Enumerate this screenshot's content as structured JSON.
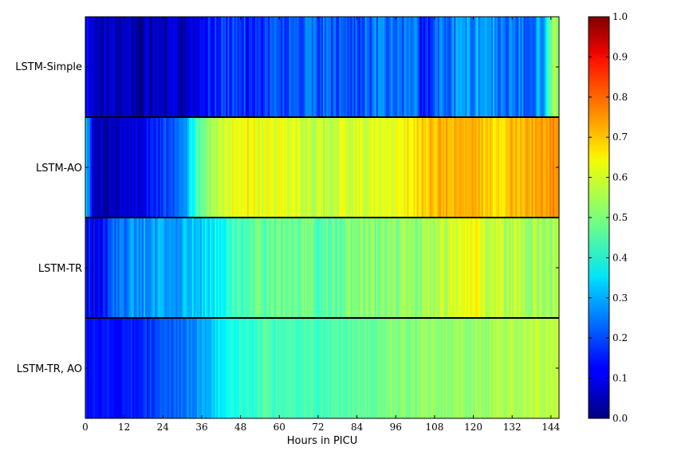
{
  "chart_data": {
    "type": "heatmap",
    "title": "",
    "xlabel": "Hours in PICU",
    "ylabel": "",
    "xlim": [
      0,
      146.5
    ],
    "x_ticks": [
      "0",
      "12",
      "24",
      "36",
      "48",
      "60",
      "72",
      "84",
      "96",
      "108",
      "120",
      "132",
      "144"
    ],
    "colorbar": {
      "colormap": "jet",
      "range": [
        0.0,
        1.0
      ],
      "ticks": [
        "0.0",
        "0.1",
        "0.2",
        "0.3",
        "0.4",
        "0.5",
        "0.6",
        "0.7",
        "0.8",
        "0.9",
        "1.0"
      ]
    },
    "grid": false,
    "rows": [
      {
        "label": "LSTM-Simple",
        "anchors": [
          [
            0,
            0.1
          ],
          [
            4,
            0.07
          ],
          [
            10,
            0.06
          ],
          [
            16,
            0.05
          ],
          [
            24,
            0.05
          ],
          [
            30,
            0.07
          ],
          [
            34,
            0.1
          ],
          [
            38,
            0.15
          ],
          [
            44,
            0.18
          ],
          [
            52,
            0.17
          ],
          [
            60,
            0.2
          ],
          [
            70,
            0.22
          ],
          [
            80,
            0.2
          ],
          [
            90,
            0.23
          ],
          [
            98,
            0.22
          ],
          [
            102,
            0.28
          ],
          [
            104,
            0.12
          ],
          [
            110,
            0.24
          ],
          [
            118,
            0.27
          ],
          [
            124,
            0.3
          ],
          [
            130,
            0.22
          ],
          [
            136,
            0.24
          ],
          [
            142,
            0.3
          ],
          [
            144,
            0.52
          ],
          [
            146.5,
            0.52
          ]
        ],
        "noise": 0.06
      },
      {
        "label": "LSTM-AO",
        "anchors": [
          [
            0,
            0.38
          ],
          [
            1.5,
            0.2
          ],
          [
            3,
            0.05
          ],
          [
            10,
            0.06
          ],
          [
            16,
            0.1
          ],
          [
            24,
            0.18
          ],
          [
            30,
            0.25
          ],
          [
            34,
            0.42
          ],
          [
            40,
            0.55
          ],
          [
            48,
            0.63
          ],
          [
            60,
            0.6
          ],
          [
            72,
            0.56
          ],
          [
            84,
            0.59
          ],
          [
            96,
            0.6
          ],
          [
            104,
            0.67
          ],
          [
            112,
            0.7
          ],
          [
            120,
            0.69
          ],
          [
            128,
            0.65
          ],
          [
            132,
            0.7
          ],
          [
            146.5,
            0.73
          ]
        ],
        "noise": 0.04
      },
      {
        "label": "LSTM-TR",
        "anchors": [
          [
            0,
            0.12
          ],
          [
            4,
            0.1
          ],
          [
            8,
            0.22
          ],
          [
            16,
            0.27
          ],
          [
            24,
            0.28
          ],
          [
            32,
            0.3
          ],
          [
            40,
            0.38
          ],
          [
            48,
            0.45
          ],
          [
            60,
            0.48
          ],
          [
            72,
            0.47
          ],
          [
            84,
            0.5
          ],
          [
            96,
            0.5
          ],
          [
            104,
            0.52
          ],
          [
            112,
            0.57
          ],
          [
            118,
            0.62
          ],
          [
            124,
            0.58
          ],
          [
            132,
            0.55
          ],
          [
            146.5,
            0.53
          ]
        ],
        "noise": 0.05
      },
      {
        "label": "LSTM-TR, AO",
        "anchors": [
          [
            0,
            0.15
          ],
          [
            12,
            0.14
          ],
          [
            20,
            0.18
          ],
          [
            28,
            0.22
          ],
          [
            36,
            0.28
          ],
          [
            44,
            0.38
          ],
          [
            56,
            0.45
          ],
          [
            72,
            0.44
          ],
          [
            84,
            0.47
          ],
          [
            96,
            0.5
          ],
          [
            108,
            0.52
          ],
          [
            120,
            0.52
          ],
          [
            132,
            0.55
          ],
          [
            146.5,
            0.56
          ]
        ],
        "noise": 0.03
      }
    ]
  }
}
